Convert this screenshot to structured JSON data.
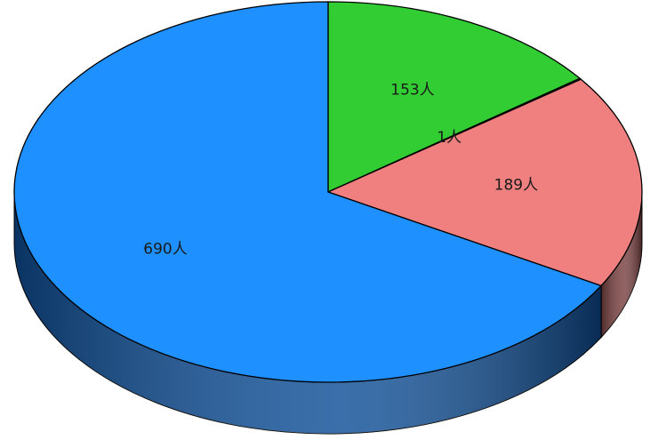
{
  "chart_data": {
    "type": "pie",
    "style": "3d",
    "title": "",
    "slices": [
      {
        "label": "153人",
        "value": 153,
        "color": "#32CD32",
        "side_color": "#1f8a1f"
      },
      {
        "label": "1人",
        "value": 1,
        "color": "#6a8fa0",
        "side_color": "#3d5560"
      },
      {
        "label": "189人",
        "value": 189,
        "color": "#F08080",
        "side_color": "#7a4040"
      },
      {
        "label": "690人",
        "value": 690,
        "color": "#1E90FF",
        "side_color": "#0e4f98"
      }
    ]
  }
}
